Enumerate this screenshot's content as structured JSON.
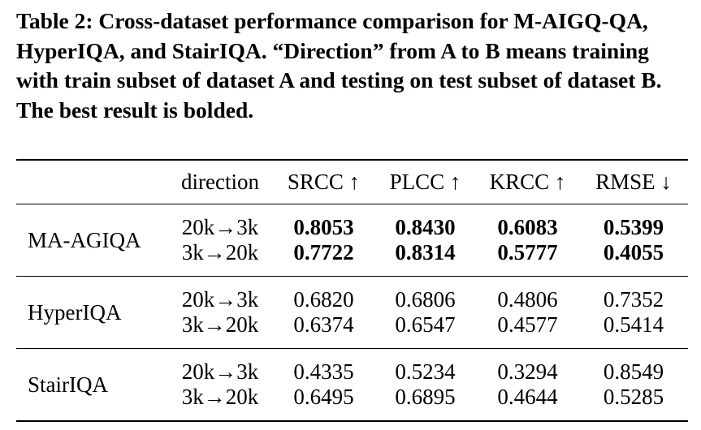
{
  "caption": "Table 2: Cross-dataset performance comparison for M-AIGQ-QA, HyperIQA, and StairIQA. “Direction” from A to B means training with train subset of dataset A and testing on test subset of dataset B. The best result is bolded.",
  "table": {
    "headers": [
      "",
      "direction",
      "SRCC ↑",
      "PLCC ↑",
      "KRCC ↑",
      "RMSE ↓"
    ],
    "groups": [
      {
        "method": "MA-AGIQA",
        "rows": [
          {
            "direction": "20k→3k",
            "srcc": "0.8053",
            "plcc": "0.8430",
            "krcc": "0.6083",
            "rmse": "0.5399"
          },
          {
            "direction": "3k→20k",
            "srcc": "0.7722",
            "plcc": "0.8314",
            "krcc": "0.5777",
            "rmse": "0.4055"
          }
        ]
      },
      {
        "method": "HyperIQA",
        "rows": [
          {
            "direction": "20k→3k",
            "srcc": "0.6820",
            "plcc": "0.6806",
            "krcc": "0.4806",
            "rmse": "0.7352"
          },
          {
            "direction": "3k→20k",
            "srcc": "0.6374",
            "plcc": "0.6547",
            "krcc": "0.4577",
            "rmse": "0.5414"
          }
        ]
      },
      {
        "method": "StairIQA",
        "rows": [
          {
            "direction": "20k→3k",
            "srcc": "0.4335",
            "plcc": "0.5234",
            "krcc": "0.3294",
            "rmse": "0.8549"
          },
          {
            "direction": "3k→20k",
            "srcc": "0.6495",
            "plcc": "0.6895",
            "krcc": "0.4644",
            "rmse": "0.5285"
          }
        ]
      }
    ]
  }
}
